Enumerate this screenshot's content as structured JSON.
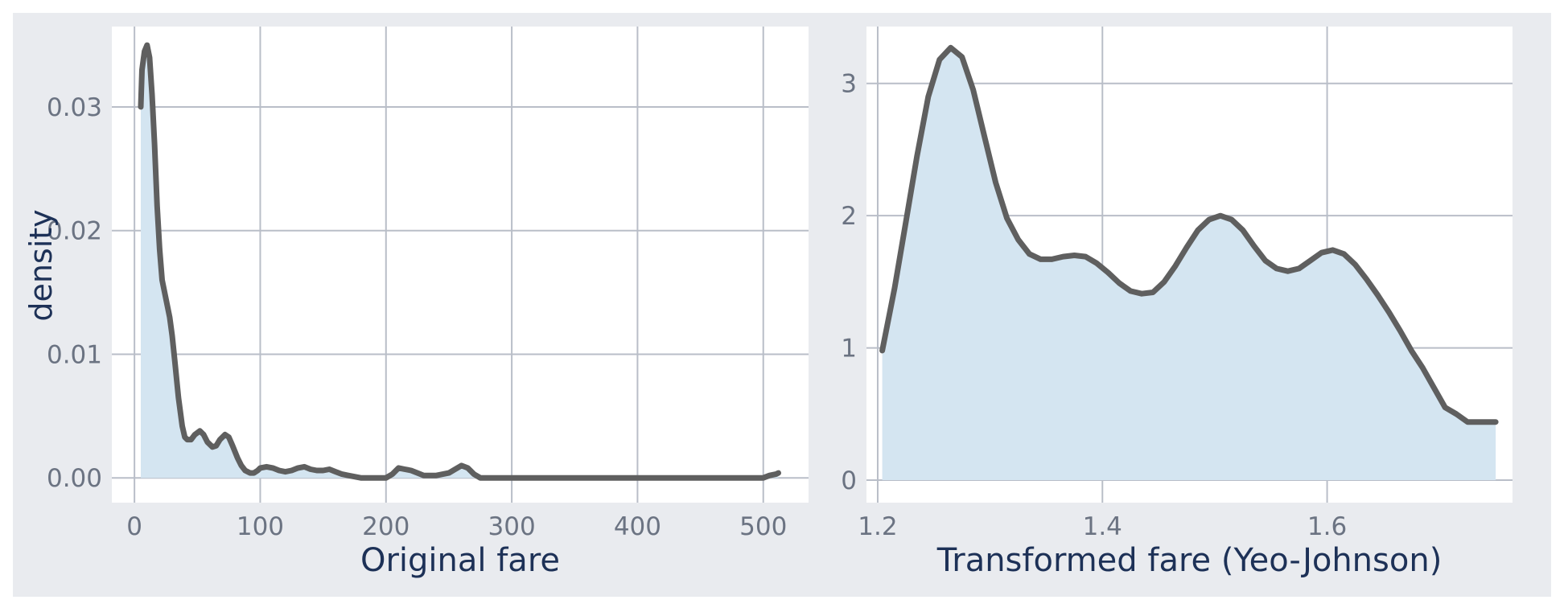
{
  "figure": {
    "background": "#ffffff",
    "panel_background": "#e9ebef",
    "plot_background": "#ffffff",
    "grid_color": "#b9bec8",
    "fill_color": "#d4e5f1",
    "line_color": "#5f5f5f",
    "tick_label_color": "#6b7382",
    "axis_title_color": "#1d3157"
  },
  "shared": {
    "ylabel": "density"
  },
  "chart_data": [
    {
      "type": "area",
      "xlabel": "Original fare",
      "ylabel": "density",
      "xlim": [
        -18,
        536
      ],
      "ylim": [
        -0.002,
        0.0365
      ],
      "xticks": [
        0,
        100,
        200,
        300,
        400,
        500
      ],
      "xtick_labels": [
        "0",
        "100",
        "200",
        "300",
        "400",
        "500"
      ],
      "yticks": [
        0,
        0.01,
        0.02,
        0.03
      ],
      "ytick_labels": [
        "0.00",
        "0.01",
        "0.02",
        "0.03"
      ],
      "grid": true,
      "x": [
        5,
        6,
        8,
        10,
        12,
        14,
        16,
        18,
        20,
        22,
        25,
        28,
        30,
        32,
        35,
        38,
        40,
        42,
        45,
        48,
        52,
        55,
        58,
        62,
        65,
        68,
        72,
        75,
        78,
        82,
        85,
        88,
        92,
        95,
        98,
        100,
        105,
        110,
        115,
        120,
        125,
        130,
        135,
        140,
        145,
        150,
        155,
        160,
        165,
        170,
        175,
        180,
        190,
        200,
        205,
        210,
        215,
        220,
        225,
        230,
        240,
        250,
        255,
        260,
        265,
        270,
        275,
        280,
        300,
        350,
        400,
        450,
        500,
        505,
        510,
        512
      ],
      "y": [
        0.03,
        0.033,
        0.0345,
        0.035,
        0.034,
        0.031,
        0.027,
        0.022,
        0.0185,
        0.016,
        0.0145,
        0.013,
        0.0115,
        0.0095,
        0.0065,
        0.0042,
        0.0033,
        0.0031,
        0.0031,
        0.0035,
        0.0038,
        0.0035,
        0.0029,
        0.0025,
        0.0026,
        0.0031,
        0.0035,
        0.0033,
        0.0026,
        0.0016,
        0.001,
        0.0006,
        0.0004,
        0.0004,
        0.0006,
        0.0008,
        0.0009,
        0.0008,
        0.0006,
        0.0005,
        0.0006,
        0.0008,
        0.0009,
        0.0007,
        0.0006,
        0.0006,
        0.0007,
        0.0005,
        0.0003,
        0.0002,
        0.0001,
        0.0,
        0.0,
        0.0,
        0.0003,
        0.0008,
        0.0007,
        0.0006,
        0.0004,
        0.0002,
        0.0002,
        0.0004,
        0.0007,
        0.001,
        0.0008,
        0.0003,
        0.0,
        0.0,
        0.0,
        0.0,
        0.0,
        0.0,
        0.0,
        0.0002,
        0.0003,
        0.0004
      ]
    },
    {
      "type": "area",
      "xlabel": "Transformed fare (Yeo-Johnson)",
      "ylabel": "",
      "xlim": [
        1.19,
        1.765
      ],
      "ylim": [
        -0.17,
        3.43
      ],
      "xticks": [
        1.2,
        1.4,
        1.6
      ],
      "xtick_labels": [
        "1.2",
        "1.4",
        "1.6"
      ],
      "yticks": [
        0,
        1,
        2,
        3
      ],
      "ytick_labels": [
        "0",
        "1",
        "2",
        "3"
      ],
      "grid": true,
      "x": [
        1.204,
        1.215,
        1.225,
        1.235,
        1.245,
        1.255,
        1.265,
        1.275,
        1.285,
        1.295,
        1.305,
        1.315,
        1.325,
        1.335,
        1.345,
        1.355,
        1.365,
        1.375,
        1.385,
        1.395,
        1.405,
        1.415,
        1.425,
        1.435,
        1.445,
        1.455,
        1.465,
        1.475,
        1.485,
        1.495,
        1.505,
        1.515,
        1.525,
        1.535,
        1.545,
        1.555,
        1.565,
        1.575,
        1.585,
        1.595,
        1.605,
        1.615,
        1.625,
        1.635,
        1.645,
        1.655,
        1.665,
        1.675,
        1.685,
        1.695,
        1.705,
        1.715,
        1.725,
        1.735,
        1.745,
        1.75
      ],
      "y": [
        0.98,
        1.45,
        1.95,
        2.45,
        2.9,
        3.18,
        3.27,
        3.2,
        2.95,
        2.6,
        2.25,
        1.98,
        1.82,
        1.71,
        1.67,
        1.67,
        1.69,
        1.7,
        1.69,
        1.64,
        1.57,
        1.49,
        1.43,
        1.41,
        1.42,
        1.5,
        1.62,
        1.76,
        1.89,
        1.97,
        2.0,
        1.97,
        1.89,
        1.77,
        1.66,
        1.6,
        1.58,
        1.6,
        1.66,
        1.72,
        1.74,
        1.71,
        1.63,
        1.52,
        1.4,
        1.27,
        1.13,
        0.98,
        0.85,
        0.7,
        0.55,
        0.5,
        0.44,
        0.44,
        0.44,
        0.44
      ]
    }
  ]
}
